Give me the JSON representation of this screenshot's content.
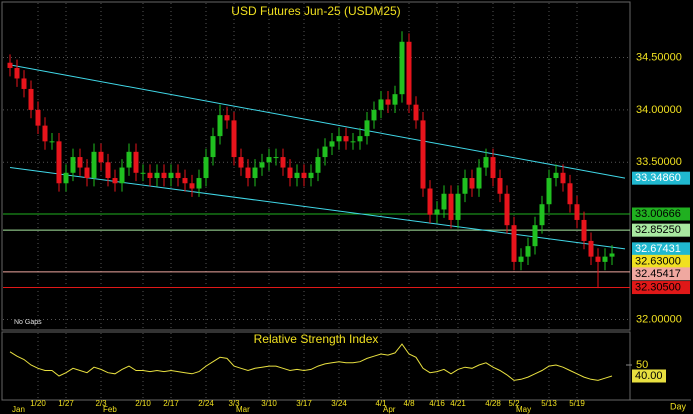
{
  "chart_data": [
    {
      "type": "candlestick",
      "title": "USD Futures Jun-25 (USDM25)",
      "annotation": "No Gaps",
      "x_unit_label": "Day",
      "categories": [
        null,
        null,
        null,
        null,
        "1/20",
        null,
        null,
        null,
        "1/27",
        null,
        null,
        null,
        null,
        "2/3",
        null,
        null,
        null,
        null,
        null,
        "2/10",
        null,
        null,
        null,
        "2/17",
        null,
        null,
        null,
        null,
        "2/24",
        null,
        null,
        null,
        "3/3",
        null,
        null,
        null,
        null,
        "3/10",
        null,
        null,
        null,
        null,
        "3/17",
        null,
        null,
        null,
        null,
        "3/24",
        null,
        null,
        null,
        null,
        null,
        "4/1",
        null,
        null,
        null,
        "4/8",
        null,
        null,
        null,
        "4/16",
        null,
        null,
        "4/21",
        null,
        null,
        null,
        null,
        "4/28",
        null,
        null,
        "5/2",
        null,
        null,
        null,
        null,
        "5/13",
        null,
        null,
        null,
        "5/19",
        null,
        null,
        null,
        null,
        null
      ],
      "months": [
        {
          "label": "Jan",
          "index": 0
        },
        {
          "label": "Feb",
          "index": 13
        },
        {
          "label": "Mar",
          "index": 32
        },
        {
          "label": "Apr",
          "index": 53
        },
        {
          "label": "May",
          "index": 72
        }
      ],
      "open": [
        34.45,
        34.4,
        34.3,
        34.2,
        34.0,
        33.85,
        33.7,
        33.7,
        33.3,
        33.4,
        33.55,
        33.45,
        33.35,
        33.6,
        33.5,
        33.35,
        33.3,
        33.45,
        33.6,
        33.4,
        33.4,
        33.35,
        33.4,
        33.35,
        33.4,
        33.35,
        33.3,
        33.25,
        33.35,
        33.55,
        33.75,
        33.95,
        33.9,
        33.55,
        33.45,
        33.35,
        33.45,
        33.5,
        33.55,
        33.55,
        33.45,
        33.35,
        33.4,
        33.35,
        33.4,
        33.55,
        33.65,
        33.7,
        33.75,
        33.7,
        33.7,
        33.75,
        33.9,
        34.0,
        34.1,
        34.05,
        34.15,
        34.65,
        34.05,
        33.9,
        33.25,
        33.0,
        33.05,
        33.2,
        32.95,
        33.2,
        33.35,
        33.25,
        33.45,
        33.55,
        33.35,
        33.2,
        32.9,
        32.55,
        32.6,
        32.7,
        32.9,
        33.1,
        33.35,
        33.4,
        33.3,
        33.1,
        32.95,
        32.75,
        32.6,
        32.55,
        32.6
      ],
      "high": [
        34.53,
        34.48,
        34.38,
        34.28,
        34.08,
        33.93,
        33.78,
        33.78,
        33.48,
        33.63,
        33.63,
        33.53,
        33.68,
        33.68,
        33.58,
        33.43,
        33.53,
        33.68,
        33.68,
        33.48,
        33.48,
        33.48,
        33.48,
        33.48,
        33.48,
        33.43,
        33.38,
        33.43,
        33.63,
        33.83,
        34.05,
        34.03,
        33.98,
        33.63,
        33.53,
        33.53,
        33.58,
        33.63,
        33.63,
        33.63,
        33.53,
        33.48,
        33.48,
        33.48,
        33.63,
        33.73,
        33.78,
        33.83,
        33.83,
        33.78,
        33.83,
        33.98,
        34.08,
        34.18,
        34.18,
        34.23,
        34.75,
        34.73,
        34.13,
        33.98,
        33.33,
        33.13,
        33.28,
        33.28,
        33.28,
        33.43,
        33.43,
        33.53,
        33.63,
        33.63,
        33.43,
        33.28,
        32.98,
        32.68,
        32.78,
        32.98,
        33.18,
        33.43,
        33.48,
        33.48,
        33.38,
        33.18,
        33.03,
        32.83,
        32.68,
        32.68,
        32.71
      ],
      "low": [
        34.32,
        34.22,
        34.12,
        33.92,
        33.77,
        33.62,
        33.62,
        33.22,
        33.22,
        33.32,
        33.37,
        33.27,
        33.27,
        33.42,
        33.27,
        33.22,
        33.22,
        33.37,
        33.32,
        33.32,
        33.27,
        33.27,
        33.27,
        33.27,
        33.27,
        33.22,
        33.17,
        33.17,
        33.27,
        33.47,
        33.67,
        33.82,
        33.47,
        33.37,
        33.27,
        33.27,
        33.37,
        33.42,
        33.47,
        33.37,
        33.27,
        33.27,
        33.27,
        33.27,
        33.32,
        33.47,
        33.57,
        33.62,
        33.62,
        33.62,
        33.62,
        33.67,
        33.82,
        33.92,
        33.97,
        33.97,
        34.07,
        33.97,
        33.82,
        33.17,
        32.92,
        32.92,
        32.97,
        32.87,
        32.87,
        33.12,
        33.17,
        33.17,
        33.37,
        33.27,
        33.12,
        32.82,
        32.47,
        32.47,
        32.52,
        32.62,
        32.82,
        33.02,
        33.27,
        33.22,
        33.02,
        32.87,
        32.67,
        32.52,
        32.3,
        32.47,
        32.52
      ],
      "close": [
        34.4,
        34.3,
        34.2,
        34.0,
        33.85,
        33.7,
        33.7,
        33.3,
        33.4,
        33.55,
        33.45,
        33.35,
        33.6,
        33.5,
        33.35,
        33.3,
        33.45,
        33.6,
        33.4,
        33.4,
        33.35,
        33.4,
        33.35,
        33.4,
        33.35,
        33.3,
        33.25,
        33.35,
        33.55,
        33.75,
        33.95,
        33.9,
        33.55,
        33.45,
        33.35,
        33.45,
        33.5,
        33.55,
        33.55,
        33.45,
        33.35,
        33.4,
        33.35,
        33.4,
        33.55,
        33.65,
        33.7,
        33.75,
        33.7,
        33.7,
        33.75,
        33.9,
        34.0,
        34.1,
        34.05,
        34.15,
        34.65,
        34.05,
        33.9,
        33.25,
        33.0,
        33.05,
        33.2,
        32.95,
        33.2,
        33.35,
        33.25,
        33.45,
        33.55,
        33.35,
        33.2,
        32.9,
        32.55,
        32.6,
        32.7,
        32.9,
        33.1,
        33.35,
        33.4,
        33.3,
        33.1,
        32.95,
        32.75,
        32.6,
        32.55,
        32.6,
        32.63
      ],
      "up_color": "#20c020",
      "down_color": "#e8141c",
      "ylim": [
        31.9,
        35.02
      ],
      "yticks": [
        {
          "value": 32.0,
          "label": "32.00000"
        },
        {
          "value": 33.5,
          "label": "33.50000"
        },
        {
          "value": 34.0,
          "label": "34.00000"
        },
        {
          "value": 34.5,
          "label": "34.50000"
        }
      ],
      "grid": true,
      "trendlines": [
        {
          "start": 34.43,
          "end": 33.3486,
          "end_label": "33.34860",
          "color": "#40d8e8"
        },
        {
          "start": 33.45,
          "end": 32.67431,
          "end_label": "32.67431",
          "color": "#40d8e8"
        }
      ],
      "levels": [
        {
          "value": 33.00666,
          "label": "33.00666",
          "color": "#20b020"
        },
        {
          "value": 32.8525,
          "label": "32.85250",
          "color": "#a8e8a0"
        },
        {
          "value": 32.45417,
          "label": "32.45417",
          "color": "#f0a8a0"
        },
        {
          "value": 32.305,
          "label": "32.30500",
          "color": "#e01818"
        }
      ],
      "last_price": {
        "value": 32.63,
        "label": "32.63000",
        "color": "#f0e020"
      }
    },
    {
      "type": "line",
      "title": "Relative Strength Index",
      "color": "#e8e040",
      "values": [
        62,
        58,
        55,
        50,
        47,
        45,
        45,
        40,
        43,
        47,
        45,
        43,
        48,
        46,
        43,
        42,
        46,
        49,
        45,
        45,
        44,
        45,
        44,
        45,
        44,
        43,
        42,
        44,
        49,
        53,
        57,
        56,
        49,
        47,
        45,
        47,
        48,
        49,
        49,
        47,
        45,
        46,
        45,
        46,
        49,
        51,
        52,
        53,
        52,
        52,
        53,
        56,
        58,
        60,
        59,
        61,
        69,
        60,
        57,
        47,
        43,
        44,
        46,
        42,
        46,
        48,
        47,
        50,
        52,
        48,
        45,
        41,
        36,
        37,
        39,
        42,
        45,
        49,
        50,
        48,
        45,
        42,
        39,
        37,
        36,
        38,
        40
      ],
      "last_value_label": "40.00",
      "ylim": [
        20,
        80
      ],
      "yticks": [
        50
      ]
    }
  ]
}
